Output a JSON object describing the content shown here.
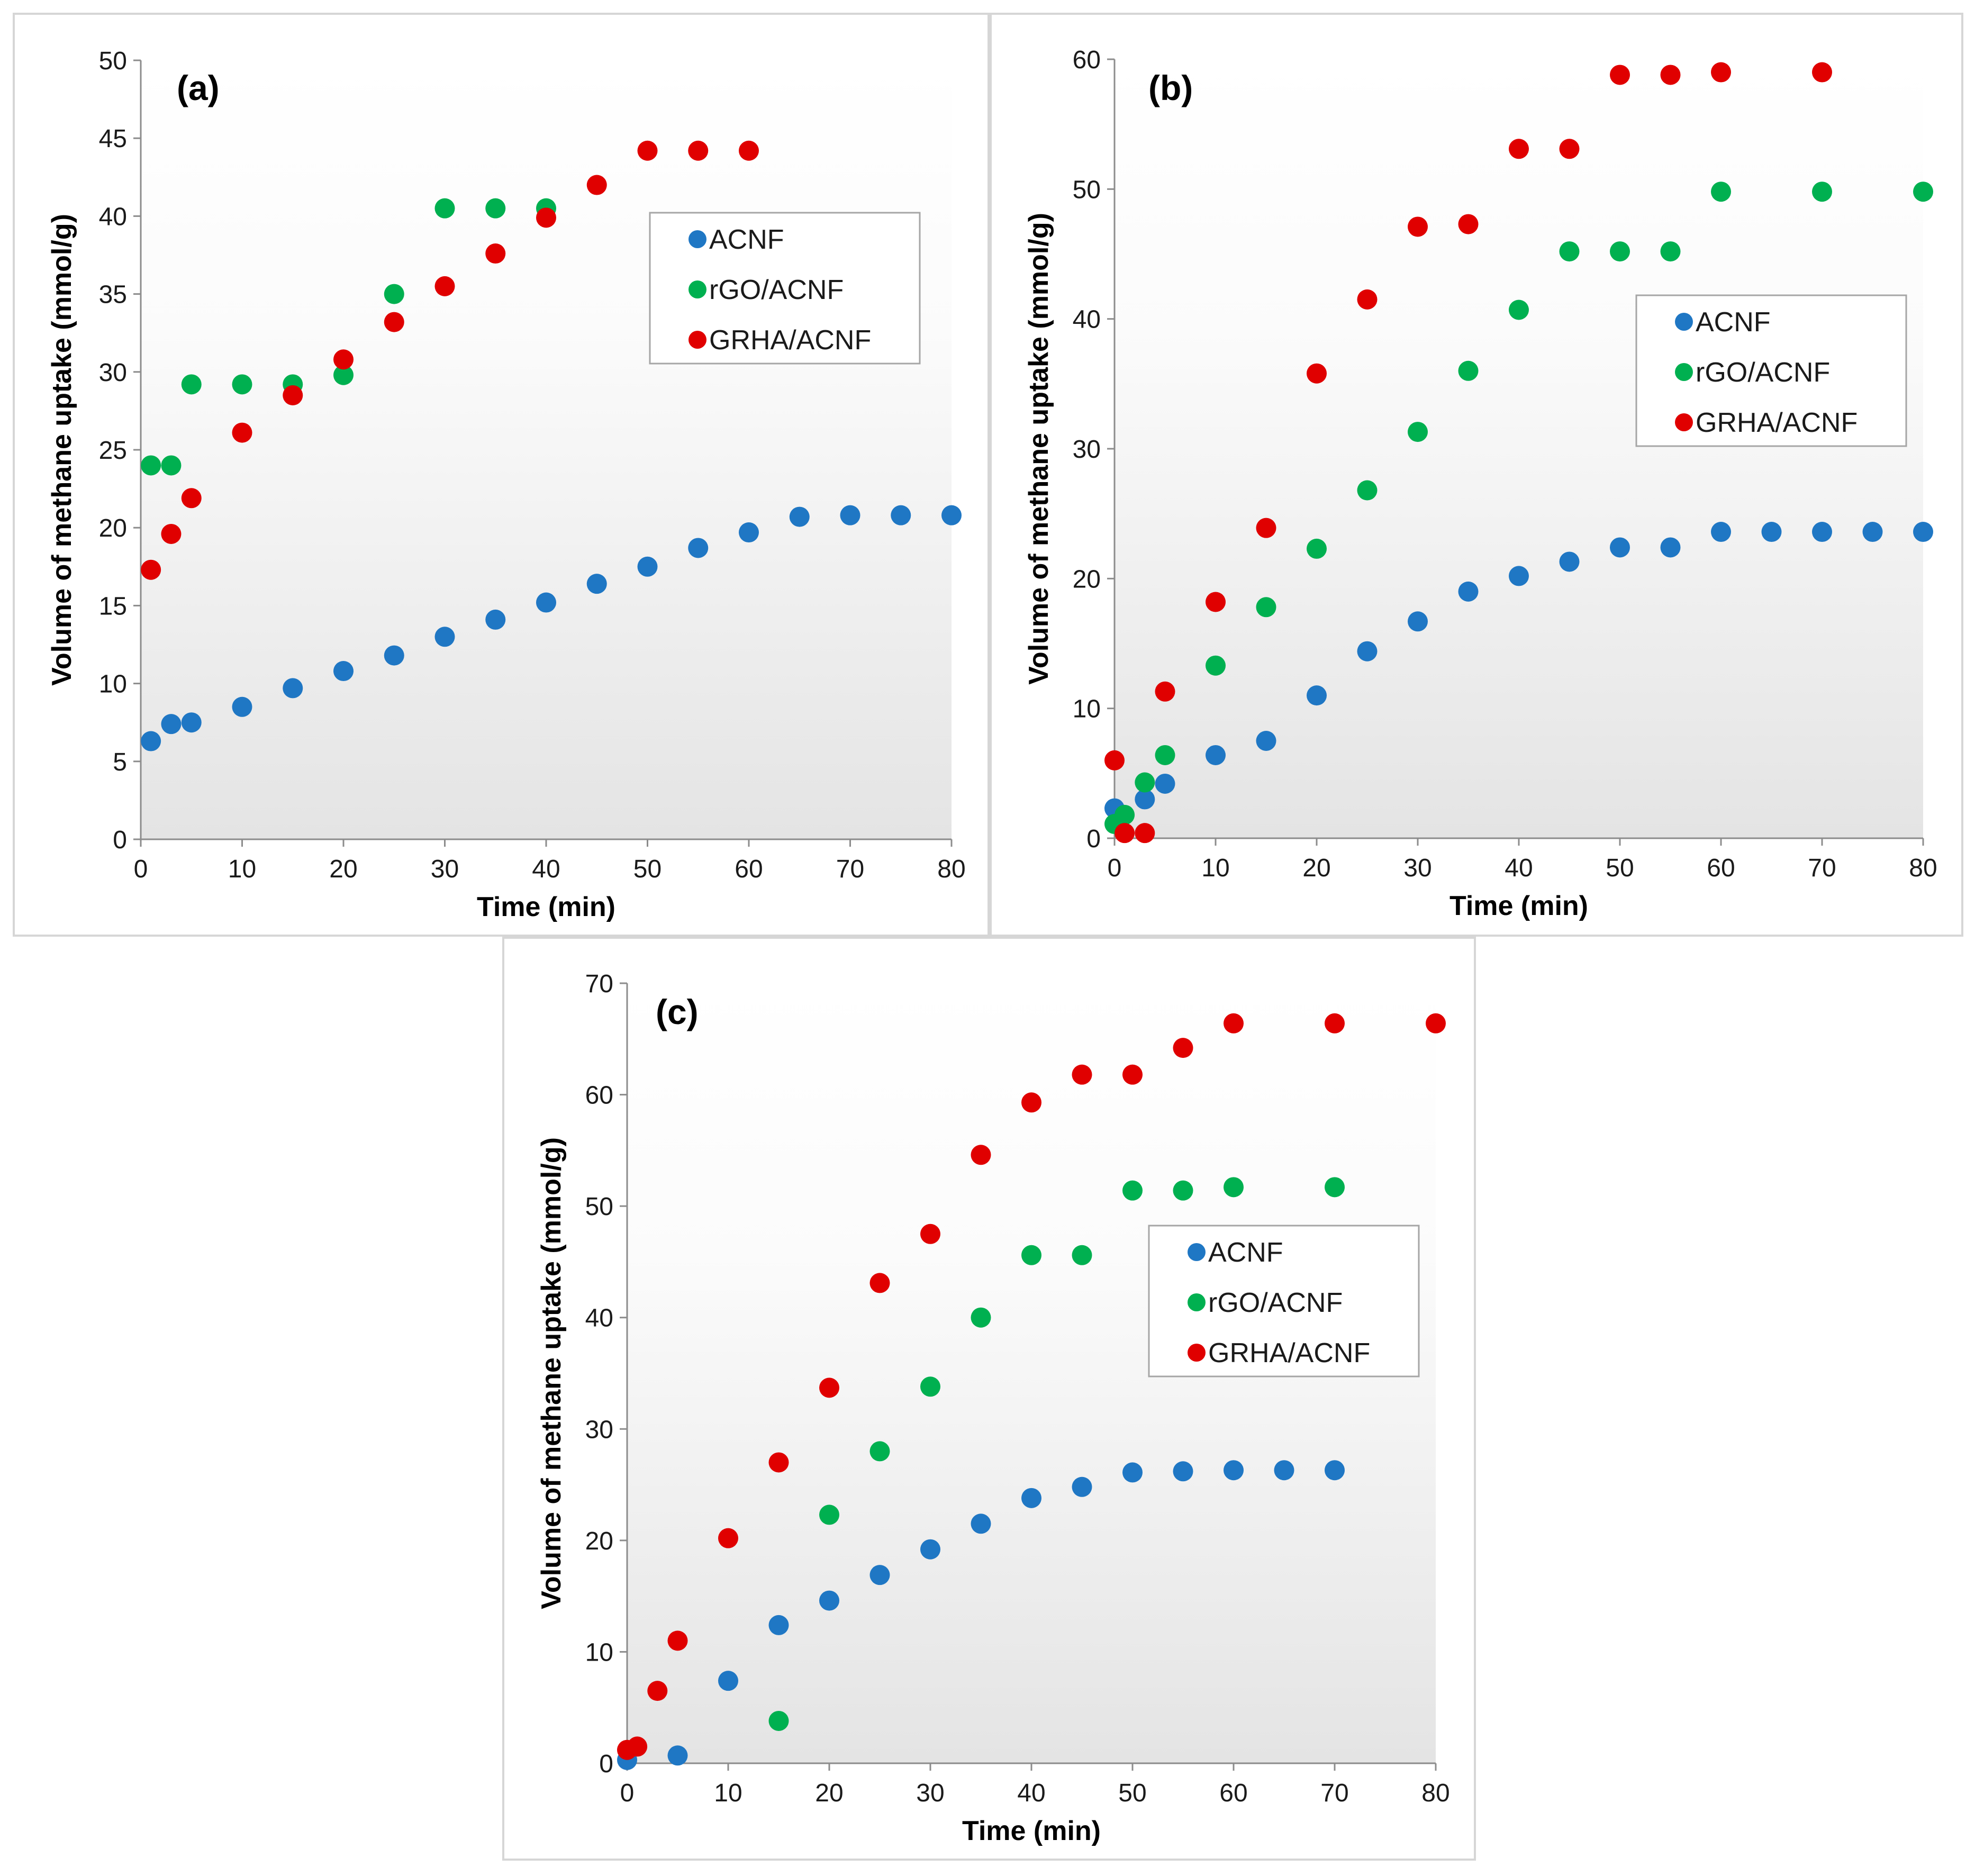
{
  "chart_data": [
    {
      "type": "scatter",
      "panel_label": "(a)",
      "xlabel": "Time (min)",
      "ylabel": "Volume of methane uptake (mmol/g)",
      "xlim": [
        0,
        80
      ],
      "ylim": [
        0,
        50
      ],
      "xticks": [
        0,
        10,
        20,
        30,
        40,
        50,
        60,
        70,
        80
      ],
      "yticks": [
        0,
        5,
        10,
        15,
        20,
        25,
        30,
        35,
        40,
        45,
        50
      ],
      "legend_position": "top-right",
      "series": [
        {
          "name": "ACNF",
          "color": "#1f77c4",
          "points": [
            [
              1,
              6.3
            ],
            [
              3,
              7.4
            ],
            [
              5,
              7.5
            ],
            [
              10,
              8.5
            ],
            [
              15,
              9.7
            ],
            [
              20,
              10.8
            ],
            [
              25,
              11.8
            ],
            [
              30,
              13.0
            ],
            [
              35,
              14.1
            ],
            [
              40,
              15.2
            ],
            [
              45,
              16.4
            ],
            [
              50,
              17.5
            ],
            [
              55,
              18.7
            ],
            [
              60,
              19.7
            ],
            [
              65,
              20.7
            ],
            [
              70,
              20.8
            ],
            [
              75,
              20.8
            ],
            [
              80,
              20.8
            ]
          ]
        },
        {
          "name": "rGO/ACNF",
          "color": "#00b050",
          "points": [
            [
              1,
              24.0
            ],
            [
              3,
              24.0
            ],
            [
              5,
              29.2
            ],
            [
              10,
              29.2
            ],
            [
              15,
              29.2
            ],
            [
              20,
              29.8
            ],
            [
              25,
              35.0
            ],
            [
              30,
              40.5
            ],
            [
              35,
              40.5
            ],
            [
              40,
              40.5
            ]
          ]
        },
        {
          "name": "GRHA/ACNF",
          "color": "#e00000",
          "points": [
            [
              1,
              17.3
            ],
            [
              3,
              19.6
            ],
            [
              5,
              21.9
            ],
            [
              10,
              26.1
            ],
            [
              15,
              28.5
            ],
            [
              20,
              30.8
            ],
            [
              25,
              33.2
            ],
            [
              30,
              35.5
            ],
            [
              35,
              37.6
            ],
            [
              40,
              39.9
            ],
            [
              45,
              42.0
            ],
            [
              50,
              44.2
            ],
            [
              55,
              44.2
            ],
            [
              60,
              44.2
            ]
          ]
        }
      ]
    },
    {
      "type": "scatter",
      "panel_label": "(b)",
      "xlabel": "Time (min)",
      "ylabel": "Volume of methane uptake (mmol/g)",
      "xlim": [
        0,
        80
      ],
      "ylim": [
        0,
        60
      ],
      "xticks": [
        0,
        10,
        20,
        30,
        40,
        50,
        60,
        70,
        80
      ],
      "yticks": [
        0,
        10,
        20,
        30,
        40,
        50,
        60
      ],
      "legend_position": "center-right",
      "series": [
        {
          "name": "ACNF",
          "color": "#1f77c4",
          "points": [
            [
              0,
              2.3
            ],
            [
              3,
              3.0
            ],
            [
              5,
              4.2
            ],
            [
              10,
              6.4
            ],
            [
              15,
              7.5
            ],
            [
              20,
              11.0
            ],
            [
              25,
              14.4
            ],
            [
              30,
              16.7
            ],
            [
              35,
              19.0
            ],
            [
              40,
              20.2
            ],
            [
              45,
              21.3
            ],
            [
              50,
              22.4
            ],
            [
              55,
              22.4
            ],
            [
              60,
              23.6
            ],
            [
              65,
              23.6
            ],
            [
              70,
              23.6
            ],
            [
              75,
              23.6
            ],
            [
              80,
              23.6
            ]
          ]
        },
        {
          "name": "rGO/ACNF",
          "color": "#00b050",
          "points": [
            [
              0,
              1.1
            ],
            [
              1,
              1.8
            ],
            [
              3,
              4.3
            ],
            [
              5,
              6.4
            ],
            [
              10,
              13.3
            ],
            [
              15,
              17.8
            ],
            [
              20,
              22.3
            ],
            [
              25,
              26.8
            ],
            [
              30,
              31.3
            ],
            [
              35,
              36.0
            ],
            [
              40,
              40.7
            ],
            [
              45,
              45.2
            ],
            [
              50,
              45.2
            ],
            [
              55,
              45.2
            ],
            [
              60,
              49.8
            ],
            [
              70,
              49.8
            ],
            [
              80,
              49.8
            ]
          ]
        },
        {
          "name": "GRHA/ACNF",
          "color": "#e00000",
          "points": [
            [
              0,
              6.0
            ],
            [
              1,
              0.4
            ],
            [
              3,
              0.4
            ],
            [
              5,
              11.3
            ],
            [
              10,
              18.2
            ],
            [
              15,
              23.9
            ],
            [
              20,
              35.8
            ],
            [
              25,
              41.5
            ],
            [
              30,
              47.1
            ],
            [
              35,
              47.3
            ],
            [
              40,
              53.1
            ],
            [
              45,
              53.1
            ],
            [
              50,
              58.8
            ],
            [
              55,
              58.8
            ],
            [
              60,
              59.0
            ],
            [
              70,
              59.0
            ]
          ]
        }
      ]
    },
    {
      "type": "scatter",
      "panel_label": "(c)",
      "xlabel": "Time (min)",
      "ylabel": "Volume of methane uptake (mmol/g)",
      "xlim": [
        0,
        80
      ],
      "ylim": [
        0,
        70
      ],
      "xticks": [
        0,
        10,
        20,
        30,
        40,
        50,
        60,
        70,
        80
      ],
      "yticks": [
        0,
        10,
        20,
        30,
        40,
        50,
        60,
        70
      ],
      "legend_position": "center-right",
      "series": [
        {
          "name": "ACNF",
          "color": "#1f77c4",
          "points": [
            [
              0,
              0.3
            ],
            [
              5,
              0.7
            ],
            [
              10,
              7.4
            ],
            [
              15,
              12.4
            ],
            [
              20,
              14.6
            ],
            [
              25,
              16.9
            ],
            [
              30,
              19.2
            ],
            [
              35,
              21.5
            ],
            [
              40,
              23.8
            ],
            [
              45,
              24.8
            ],
            [
              50,
              26.1
            ],
            [
              55,
              26.2
            ],
            [
              60,
              26.3
            ],
            [
              65,
              26.3
            ],
            [
              70,
              26.3
            ]
          ]
        },
        {
          "name": "rGO/ACNF",
          "color": "#00b050",
          "points": [
            [
              15,
              3.8
            ],
            [
              20,
              22.3
            ],
            [
              25,
              28.0
            ],
            [
              30,
              33.8
            ],
            [
              35,
              40.0
            ],
            [
              40,
              45.6
            ],
            [
              45,
              45.6
            ],
            [
              50,
              51.4
            ],
            [
              55,
              51.4
            ],
            [
              60,
              51.7
            ],
            [
              70,
              51.7
            ]
          ]
        },
        {
          "name": "GRHA/ACNF",
          "color": "#e00000",
          "points": [
            [
              0,
              1.2
            ],
            [
              1,
              1.5
            ],
            [
              3,
              6.5
            ],
            [
              5,
              11.0
            ],
            [
              10,
              20.2
            ],
            [
              15,
              27.0
            ],
            [
              20,
              33.7
            ],
            [
              25,
              43.1
            ],
            [
              30,
              47.5
            ],
            [
              35,
              54.6
            ],
            [
              40,
              59.3
            ],
            [
              45,
              61.8
            ],
            [
              50,
              61.8
            ],
            [
              55,
              64.2
            ],
            [
              60,
              66.4
            ],
            [
              70,
              66.4
            ],
            [
              80,
              66.4
            ]
          ]
        }
      ]
    }
  ]
}
